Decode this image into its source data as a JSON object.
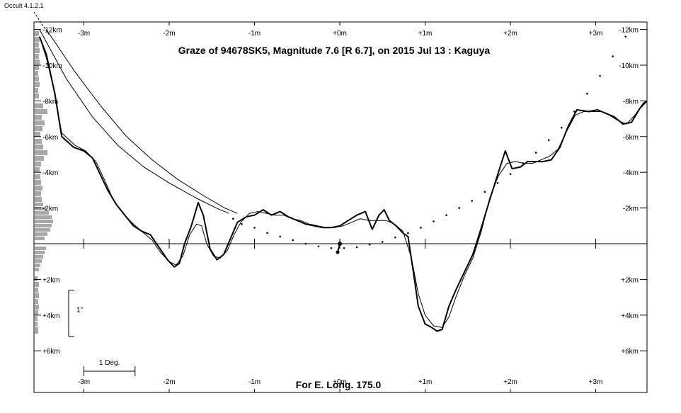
{
  "app_title": "Occult 4.1.2.1",
  "chart_data": {
    "type": "line",
    "title": "Graze of  94678SK5,  Magnitude 7.6 [R 6.7],  on 2015 Jul 13  :  Kaguya",
    "footer": "For E. Long. 175.0",
    "x_unit": "minutes",
    "y_unit": "km",
    "xlim": [
      -3.6,
      3.6
    ],
    "ylim": [
      -12,
      6
    ],
    "x_tick_labels": [
      {
        "x": -3,
        "label": "-3m"
      },
      {
        "x": -2,
        "label": "-2m"
      },
      {
        "x": -1,
        "label": "-1m"
      },
      {
        "x": 0,
        "label": "+0m"
      },
      {
        "x": 1,
        "label": "+1m"
      },
      {
        "x": 2,
        "label": "+2m"
      },
      {
        "x": 3,
        "label": "+3m"
      }
    ],
    "y_tick_labels": [
      {
        "y": -12,
        "label": "-12km"
      },
      {
        "y": -10,
        "label": "-10km"
      },
      {
        "y": -8,
        "label": "-8km"
      },
      {
        "y": -6,
        "label": "-6km"
      },
      {
        "y": -4,
        "label": "-4km"
      },
      {
        "y": -2,
        "label": "-2km"
      },
      {
        "y": 2,
        "label": "+2km"
      },
      {
        "y": 4,
        "label": "+4km"
      },
      {
        "y": 6,
        "label": "+6km"
      }
    ],
    "scale_bar_label": "1 Deg.",
    "scale_bar_span": [
      -3,
      -2.4
    ],
    "vertical_scale_label": "1\"",
    "vertical_scale_span": [
      2.6,
      5.2
    ],
    "series": [
      {
        "style": "profile-detailed",
        "points": [
          [
            -3.52,
            -11.6
          ],
          [
            -3.44,
            -10.6
          ],
          [
            -3.34,
            -8.4
          ],
          [
            -3.26,
            -6.0
          ],
          [
            -3.12,
            -5.4
          ],
          [
            -3.0,
            -5.2
          ],
          [
            -2.9,
            -4.8
          ],
          [
            -2.82,
            -4.0
          ],
          [
            -2.72,
            -3.0
          ],
          [
            -2.62,
            -2.2
          ],
          [
            -2.52,
            -1.6
          ],
          [
            -2.42,
            -1.0
          ],
          [
            -2.32,
            -0.7
          ],
          [
            -2.22,
            -0.5
          ],
          [
            -2.12,
            0.2
          ],
          [
            -2.02,
            0.9
          ],
          [
            -1.94,
            1.3
          ],
          [
            -1.88,
            1.1
          ],
          [
            -1.82,
            0.0
          ],
          [
            -1.74,
            -1.0
          ],
          [
            -1.66,
            -2.3
          ],
          [
            -1.6,
            -1.6
          ],
          [
            -1.52,
            0.3
          ],
          [
            -1.44,
            0.9
          ],
          [
            -1.36,
            0.6
          ],
          [
            -1.28,
            -0.3
          ],
          [
            -1.2,
            -1.2
          ],
          [
            -1.1,
            -1.5
          ],
          [
            -1.0,
            -1.6
          ],
          [
            -0.9,
            -1.9
          ],
          [
            -0.8,
            -1.6
          ],
          [
            -0.7,
            -1.8
          ],
          [
            -0.6,
            -1.5
          ],
          [
            -0.5,
            -1.3
          ],
          [
            -0.4,
            -1.1
          ],
          [
            -0.3,
            -1.0
          ],
          [
            -0.2,
            -0.9
          ],
          [
            -0.1,
            -0.9
          ],
          [
            0.0,
            -1.0
          ],
          [
            0.1,
            -1.3
          ],
          [
            0.2,
            -1.6
          ],
          [
            0.3,
            -1.8
          ],
          [
            0.38,
            -0.8
          ],
          [
            0.46,
            -1.6
          ],
          [
            0.52,
            -1.9
          ],
          [
            0.58,
            -1.3
          ],
          [
            0.66,
            -1.0
          ],
          [
            0.74,
            -0.6
          ],
          [
            0.8,
            -0.4
          ],
          [
            0.86,
            1.5
          ],
          [
            0.92,
            3.5
          ],
          [
            1.0,
            4.5
          ],
          [
            1.08,
            4.7
          ],
          [
            1.14,
            4.9
          ],
          [
            1.2,
            4.8
          ],
          [
            1.28,
            3.5
          ],
          [
            1.36,
            2.6
          ],
          [
            1.46,
            1.6
          ],
          [
            1.56,
            0.6
          ],
          [
            1.66,
            -0.9
          ],
          [
            1.76,
            -2.5
          ],
          [
            1.86,
            -4.0
          ],
          [
            1.94,
            -5.2
          ],
          [
            2.02,
            -4.2
          ],
          [
            2.12,
            -4.3
          ],
          [
            2.2,
            -4.6
          ],
          [
            2.28,
            -4.6
          ],
          [
            2.38,
            -4.6
          ],
          [
            2.48,
            -4.7
          ],
          [
            2.58,
            -5.4
          ],
          [
            2.68,
            -6.6
          ],
          [
            2.78,
            -7.5
          ],
          [
            2.92,
            -7.4
          ],
          [
            3.02,
            -7.5
          ],
          [
            3.12,
            -7.3
          ],
          [
            3.22,
            -7.1
          ],
          [
            3.32,
            -6.7
          ],
          [
            3.42,
            -6.8
          ],
          [
            3.52,
            -7.6
          ],
          [
            3.6,
            -8.0
          ]
        ]
      },
      {
        "style": "profile-smooth",
        "points": [
          [
            -3.52,
            -11.6
          ],
          [
            -3.44,
            -10.4
          ],
          [
            -3.36,
            -8.8
          ],
          [
            -3.26,
            -6.2
          ],
          [
            -3.1,
            -5.5
          ],
          [
            -2.98,
            -5.2
          ],
          [
            -2.86,
            -4.6
          ],
          [
            -2.76,
            -3.6
          ],
          [
            -2.66,
            -2.5
          ],
          [
            -2.54,
            -1.7
          ],
          [
            -2.42,
            -1.1
          ],
          [
            -2.3,
            -0.6
          ],
          [
            -2.2,
            -0.2
          ],
          [
            -2.1,
            0.5
          ],
          [
            -2.0,
            1.0
          ],
          [
            -1.92,
            1.2
          ],
          [
            -1.84,
            0.7
          ],
          [
            -1.76,
            -0.5
          ],
          [
            -1.68,
            -1.1
          ],
          [
            -1.62,
            -1.0
          ],
          [
            -1.56,
            0.0
          ],
          [
            -1.48,
            0.7
          ],
          [
            -1.4,
            0.8
          ],
          [
            -1.32,
            0.4
          ],
          [
            -1.24,
            -0.5
          ],
          [
            -1.16,
            -1.2
          ],
          [
            -1.06,
            -1.7
          ],
          [
            -0.96,
            -1.8
          ],
          [
            -0.86,
            -1.7
          ],
          [
            -0.76,
            -1.6
          ],
          [
            -0.66,
            -1.6
          ],
          [
            -0.56,
            -1.4
          ],
          [
            -0.46,
            -1.3
          ],
          [
            -0.36,
            -1.1
          ],
          [
            -0.26,
            -1.0
          ],
          [
            -0.16,
            -0.9
          ],
          [
            -0.06,
            -0.9
          ],
          [
            0.04,
            -1.0
          ],
          [
            0.14,
            -1.2
          ],
          [
            0.24,
            -1.4
          ],
          [
            0.34,
            -1.3
          ],
          [
            0.44,
            -1.3
          ],
          [
            0.54,
            -1.3
          ],
          [
            0.64,
            -1.1
          ],
          [
            0.74,
            -0.7
          ],
          [
            0.84,
            0.8
          ],
          [
            0.92,
            2.8
          ],
          [
            1.0,
            4.0
          ],
          [
            1.1,
            4.6
          ],
          [
            1.2,
            4.7
          ],
          [
            1.28,
            4.1
          ],
          [
            1.36,
            3.0
          ],
          [
            1.46,
            1.8
          ],
          [
            1.56,
            0.8
          ],
          [
            1.66,
            -0.7
          ],
          [
            1.76,
            -2.6
          ],
          [
            1.86,
            -3.8
          ],
          [
            1.96,
            -4.5
          ],
          [
            2.06,
            -4.6
          ],
          [
            2.16,
            -4.5
          ],
          [
            2.26,
            -4.5
          ],
          [
            2.36,
            -4.7
          ],
          [
            2.46,
            -4.9
          ],
          [
            2.56,
            -5.3
          ],
          [
            2.66,
            -6.3
          ],
          [
            2.76,
            -7.2
          ],
          [
            2.86,
            -7.4
          ],
          [
            2.96,
            -7.4
          ],
          [
            3.06,
            -7.4
          ],
          [
            3.16,
            -7.2
          ],
          [
            3.26,
            -6.9
          ],
          [
            3.36,
            -6.7
          ],
          [
            3.46,
            -7.2
          ],
          [
            3.56,
            -7.9
          ],
          [
            3.6,
            -8.0
          ]
        ]
      },
      {
        "style": "limb-curve",
        "points": [
          [
            -3.52,
            -12.0
          ],
          [
            -3.2,
            -9.2
          ],
          [
            -2.9,
            -7.1
          ],
          [
            -2.6,
            -5.5
          ],
          [
            -2.3,
            -4.3
          ],
          [
            -2.0,
            -3.4
          ],
          [
            -1.7,
            -2.6
          ],
          [
            -1.45,
            -2.0
          ],
          [
            -1.3,
            -1.7
          ]
        ]
      },
      {
        "style": "limb-curve",
        "points": [
          [
            -3.44,
            -12.0
          ],
          [
            -3.1,
            -9.6
          ],
          [
            -2.8,
            -7.7
          ],
          [
            -2.5,
            -6.0
          ],
          [
            -2.2,
            -4.7
          ],
          [
            -1.9,
            -3.6
          ],
          [
            -1.6,
            -2.7
          ],
          [
            -1.35,
            -2.0
          ],
          [
            -1.2,
            -1.7
          ]
        ]
      },
      {
        "style": "dotted",
        "points": [
          [
            -1.25,
            -1.4
          ],
          [
            -1.15,
            -1.1
          ],
          [
            -1.0,
            -0.9
          ],
          [
            -0.85,
            -0.6
          ],
          [
            -0.7,
            -0.4
          ],
          [
            -0.55,
            -0.2
          ],
          [
            -0.4,
            0.0
          ],
          [
            -0.25,
            0.15
          ],
          [
            -0.1,
            0.25
          ],
          [
            0.05,
            0.25
          ],
          [
            0.2,
            0.2
          ],
          [
            0.35,
            0.05
          ],
          [
            0.5,
            -0.1
          ],
          [
            0.65,
            -0.35
          ],
          [
            0.8,
            -0.6
          ],
          [
            0.95,
            -0.9
          ],
          [
            1.1,
            -1.25
          ],
          [
            1.25,
            -1.6
          ],
          [
            1.4,
            -2.0
          ],
          [
            1.55,
            -2.4
          ],
          [
            1.7,
            -2.9
          ],
          [
            1.85,
            -3.4
          ],
          [
            2.0,
            -3.9
          ],
          [
            2.15,
            -4.5
          ],
          [
            2.3,
            -5.1
          ],
          [
            2.45,
            -5.8
          ],
          [
            2.6,
            -6.5
          ],
          [
            2.75,
            -7.4
          ],
          [
            2.9,
            -8.4
          ],
          [
            3.05,
            -9.4
          ],
          [
            3.2,
            -10.5
          ],
          [
            3.35,
            -11.6
          ]
        ]
      }
    ],
    "observer_marker": {
      "x": 0,
      "y": 0
    }
  }
}
